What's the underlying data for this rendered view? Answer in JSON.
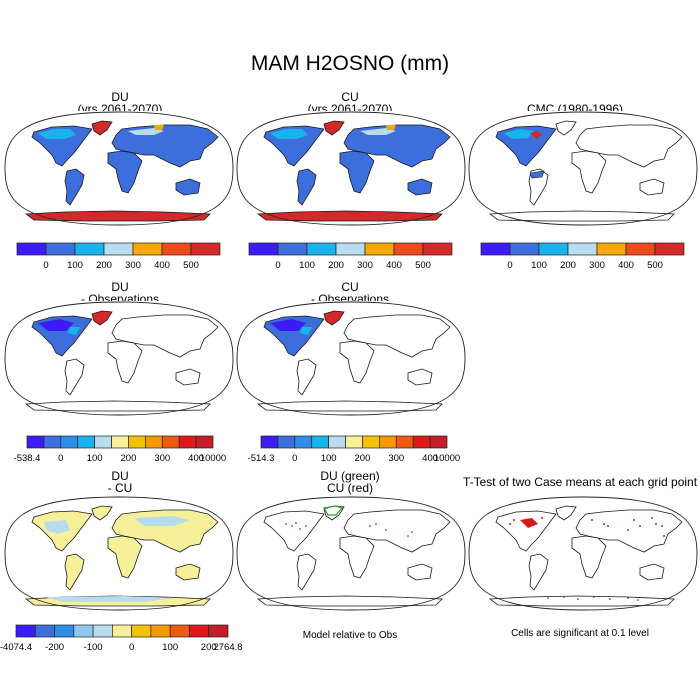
{
  "figure": {
    "title": "MAM H2OSNO (mm)"
  },
  "chart_data": [
    {
      "type": "heatmap",
      "id": "p1",
      "title_lines": [
        "DU",
        "(yrs 2061-2070)"
      ],
      "colors": [
        "#3c1cf5",
        "#3d6fdc",
        "#1ab4ec",
        "#b9dced",
        "#f4a800",
        "#ee4a1c",
        "#d22a2a"
      ],
      "tick_labels": [
        "0",
        "100",
        "200",
        "300",
        "400",
        "500"
      ]
    },
    {
      "type": "heatmap",
      "id": "p2",
      "title_lines": [
        "CU",
        "(yrs 2061-2070)"
      ],
      "colors": [
        "#3c1cf5",
        "#3d6fdc",
        "#1ab4ec",
        "#b9dced",
        "#f4a800",
        "#ee4a1c",
        "#d22a2a"
      ],
      "tick_labels": [
        "0",
        "100",
        "200",
        "300",
        "400",
        "500"
      ]
    },
    {
      "type": "heatmap",
      "id": "p3",
      "title_lines": [
        "CMC (1980-1996)"
      ],
      "colors": [
        "#3c1cf5",
        "#3d6fdc",
        "#1ab4ec",
        "#b9dced",
        "#f4a800",
        "#ee4a1c",
        "#d22a2a"
      ],
      "tick_labels": [
        "0",
        "100",
        "200",
        "300",
        "400",
        "500"
      ]
    },
    {
      "type": "heatmap",
      "id": "p4",
      "title_lines": [
        "DU",
        "- Observations"
      ],
      "colors": [
        "#3c1cf5",
        "#3d6fdc",
        "#2f8ee8",
        "#1ab4ec",
        "#b9dced",
        "#f7f09a",
        "#f4c200",
        "#f49a00",
        "#ee5a10",
        "#e01a1a",
        "#c41e2a"
      ],
      "tick_labels": [
        "-538.4",
        "0",
        "100",
        "200",
        "300",
        "400",
        "10000"
      ]
    },
    {
      "type": "heatmap",
      "id": "p5",
      "title_lines": [
        "CU",
        "- Observations"
      ],
      "colors": [
        "#3c1cf5",
        "#3d6fdc",
        "#2f8ee8",
        "#1ab4ec",
        "#b9dced",
        "#f7f09a",
        "#f4c200",
        "#f49a00",
        "#ee5a10",
        "#e01a1a",
        "#c41e2a"
      ],
      "tick_labels": [
        "-514.3",
        "0",
        "100",
        "200",
        "300",
        "400",
        "10000"
      ]
    },
    {
      "type": "heatmap",
      "id": "p7",
      "title_lines": [
        "DU",
        "- CU"
      ],
      "colors": [
        "#3c1cf5",
        "#3d6fdc",
        "#2f8ee8",
        "#8fc8ec",
        "#b9dced",
        "#f7f09a",
        "#f4c200",
        "#f49a00",
        "#ee5a10",
        "#e01a1a",
        "#c41e2a"
      ],
      "tick_labels": [
        "-4074.4",
        "-200",
        "-100",
        "0",
        "100",
        "200",
        "2764.8"
      ]
    },
    {
      "type": "heatmap",
      "id": "p8",
      "title_lines": [
        "DU (green)",
        "CU (red)"
      ],
      "note": "Model relative to Obs"
    },
    {
      "type": "heatmap",
      "id": "p9",
      "title_lines": [
        "T-Test of two Case means at each grid point"
      ],
      "note": "Cells are significant at 0.1 level"
    }
  ]
}
